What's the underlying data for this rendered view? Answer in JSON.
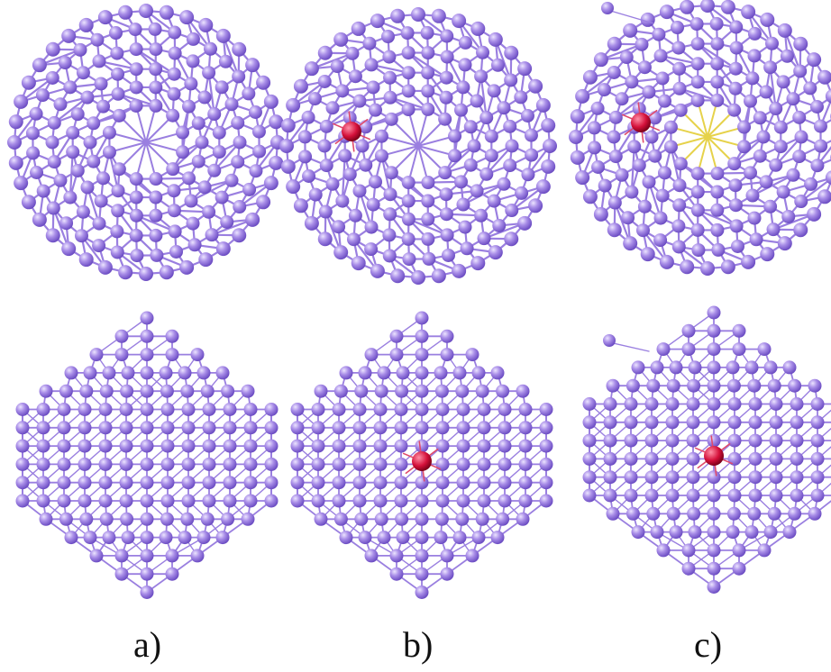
{
  "figure": {
    "panels": [
      {
        "label": "a)",
        "dopant": false,
        "stray_atom": false
      },
      {
        "label": "b)",
        "dopant": true,
        "stray_atom": false
      },
      {
        "label": "c)",
        "dopant": true,
        "stray_atom": true
      }
    ],
    "views": [
      "top",
      "side"
    ],
    "colors": {
      "atom": "#a98ee8",
      "atom_highlight": "#ece4ff",
      "atom_shadow": "#6a4bc2",
      "bond": "#9a7fe0",
      "dopant": "#d4103a",
      "dopant_highlight": "#ff8fa6",
      "background": "#ffffff"
    },
    "atom_name": "cluster-atom",
    "dopant_name": "dopant-atom"
  }
}
